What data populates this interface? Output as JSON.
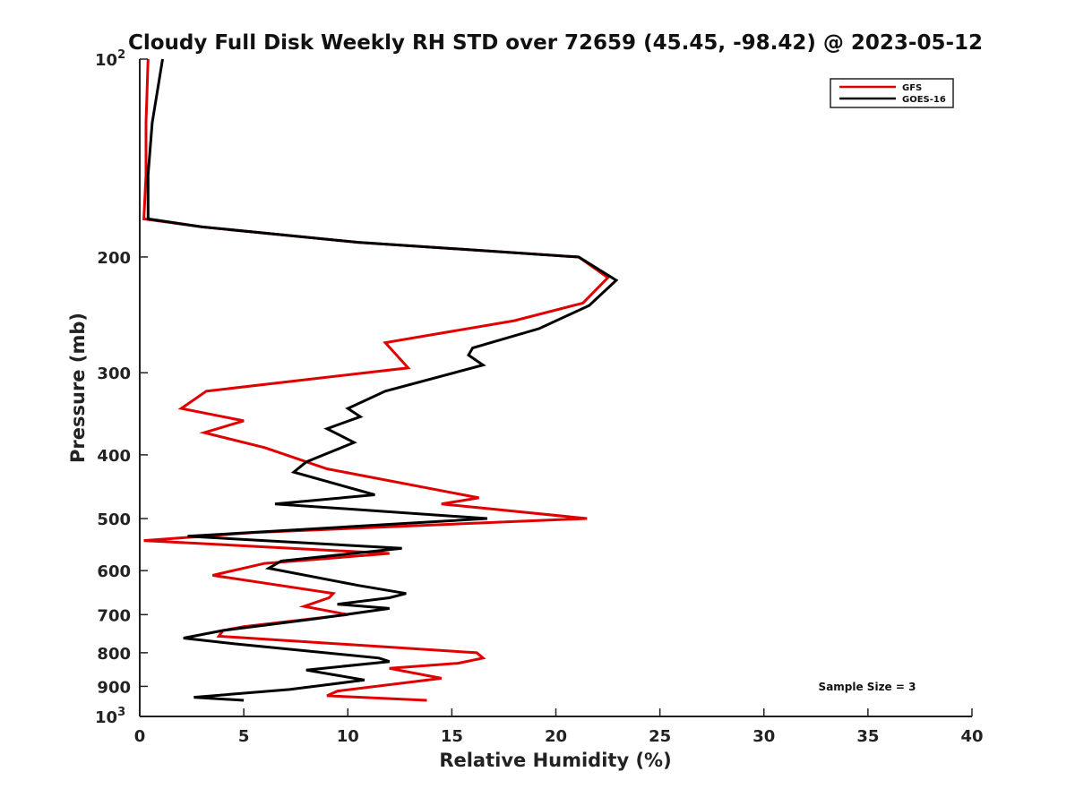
{
  "chart_data": {
    "type": "line",
    "title": "Cloudy Full Disk Weekly RH STD over 72659 (45.45, -98.42) @ 2023-05-12",
    "xlabel": "Relative Humidity (%)",
    "ylabel": "Pressure (mb)",
    "xlim": [
      0,
      40
    ],
    "ylim": [
      100,
      1000
    ],
    "yscale": "log",
    "y_reversed": true,
    "grid": false,
    "legend_position": "top-right",
    "x_ticks": [
      "0",
      "5",
      "10",
      "15",
      "20",
      "25",
      "30",
      "35",
      "40"
    ],
    "y_ticks": [
      {
        "value": 100,
        "label": "10",
        "sup": "2"
      },
      {
        "value": 200,
        "label": "200"
      },
      {
        "value": 300,
        "label": "300"
      },
      {
        "value": 400,
        "label": "400"
      },
      {
        "value": 500,
        "label": "500"
      },
      {
        "value": 600,
        "label": "600"
      },
      {
        "value": 700,
        "label": "700"
      },
      {
        "value": 800,
        "label": "800"
      },
      {
        "value": 900,
        "label": "900"
      },
      {
        "value": 1000,
        "label": "10",
        "sup": "3"
      }
    ],
    "series": [
      {
        "name": "GFS",
        "color": "#e00000",
        "points": [
          [
            0.4,
            100
          ],
          [
            0.3,
            125
          ],
          [
            0.3,
            150
          ],
          [
            0.2,
            175
          ],
          [
            3.0,
            180
          ],
          [
            10.5,
            190
          ],
          [
            21.1,
            200
          ],
          [
            22.5,
            215
          ],
          [
            21.3,
            235
          ],
          [
            18.0,
            250
          ],
          [
            11.8,
            270
          ],
          [
            12.9,
            295
          ],
          [
            3.2,
            320
          ],
          [
            2.0,
            340
          ],
          [
            5.0,
            355
          ],
          [
            3.1,
            370
          ],
          [
            6.0,
            390
          ],
          [
            9.0,
            420
          ],
          [
            16.3,
            465
          ],
          [
            14.5,
            475
          ],
          [
            21.5,
            500
          ],
          [
            5.5,
            525
          ],
          [
            0.2,
            540
          ],
          [
            12.0,
            565
          ],
          [
            6.0,
            585
          ],
          [
            3.5,
            610
          ],
          [
            9.3,
            650
          ],
          [
            9.1,
            660
          ],
          [
            7.9,
            680
          ],
          [
            10.0,
            700
          ],
          [
            5.0,
            730
          ],
          [
            4.0,
            740
          ],
          [
            3.8,
            755
          ],
          [
            16.2,
            800
          ],
          [
            16.5,
            815
          ],
          [
            15.3,
            830
          ],
          [
            12.0,
            845
          ],
          [
            14.5,
            875
          ],
          [
            9.5,
            915
          ],
          [
            9.0,
            930
          ],
          [
            13.8,
            945
          ]
        ]
      },
      {
        "name": "GOES-16",
        "color": "#000000",
        "points": [
          [
            1.1,
            100
          ],
          [
            0.6,
            125
          ],
          [
            0.4,
            150
          ],
          [
            0.4,
            175
          ],
          [
            3.0,
            180
          ],
          [
            10.5,
            190
          ],
          [
            21.1,
            200
          ],
          [
            22.9,
            217
          ],
          [
            21.6,
            237
          ],
          [
            19.2,
            257
          ],
          [
            16.0,
            275
          ],
          [
            15.8,
            282
          ],
          [
            16.5,
            292
          ],
          [
            11.8,
            320
          ],
          [
            10.0,
            340
          ],
          [
            10.6,
            350
          ],
          [
            9.0,
            365
          ],
          [
            10.3,
            383
          ],
          [
            8.0,
            410
          ],
          [
            7.4,
            425
          ],
          [
            11.3,
            460
          ],
          [
            6.5,
            475
          ],
          [
            16.7,
            500
          ],
          [
            2.3,
            532
          ],
          [
            12.6,
            555
          ],
          [
            6.8,
            580
          ],
          [
            6.2,
            595
          ],
          [
            10.5,
            632
          ],
          [
            12.8,
            650
          ],
          [
            12.0,
            660
          ],
          [
            9.5,
            675
          ],
          [
            12.0,
            685
          ],
          [
            8.5,
            710
          ],
          [
            4.0,
            740
          ],
          [
            2.1,
            760
          ],
          [
            4.5,
            775
          ],
          [
            11.5,
            815
          ],
          [
            12.0,
            825
          ],
          [
            8.0,
            850
          ],
          [
            10.8,
            880
          ],
          [
            7.2,
            910
          ],
          [
            2.6,
            935
          ],
          [
            5.0,
            945
          ]
        ]
      }
    ],
    "annotations": [
      {
        "text": "Sample Size = 3"
      }
    ]
  }
}
